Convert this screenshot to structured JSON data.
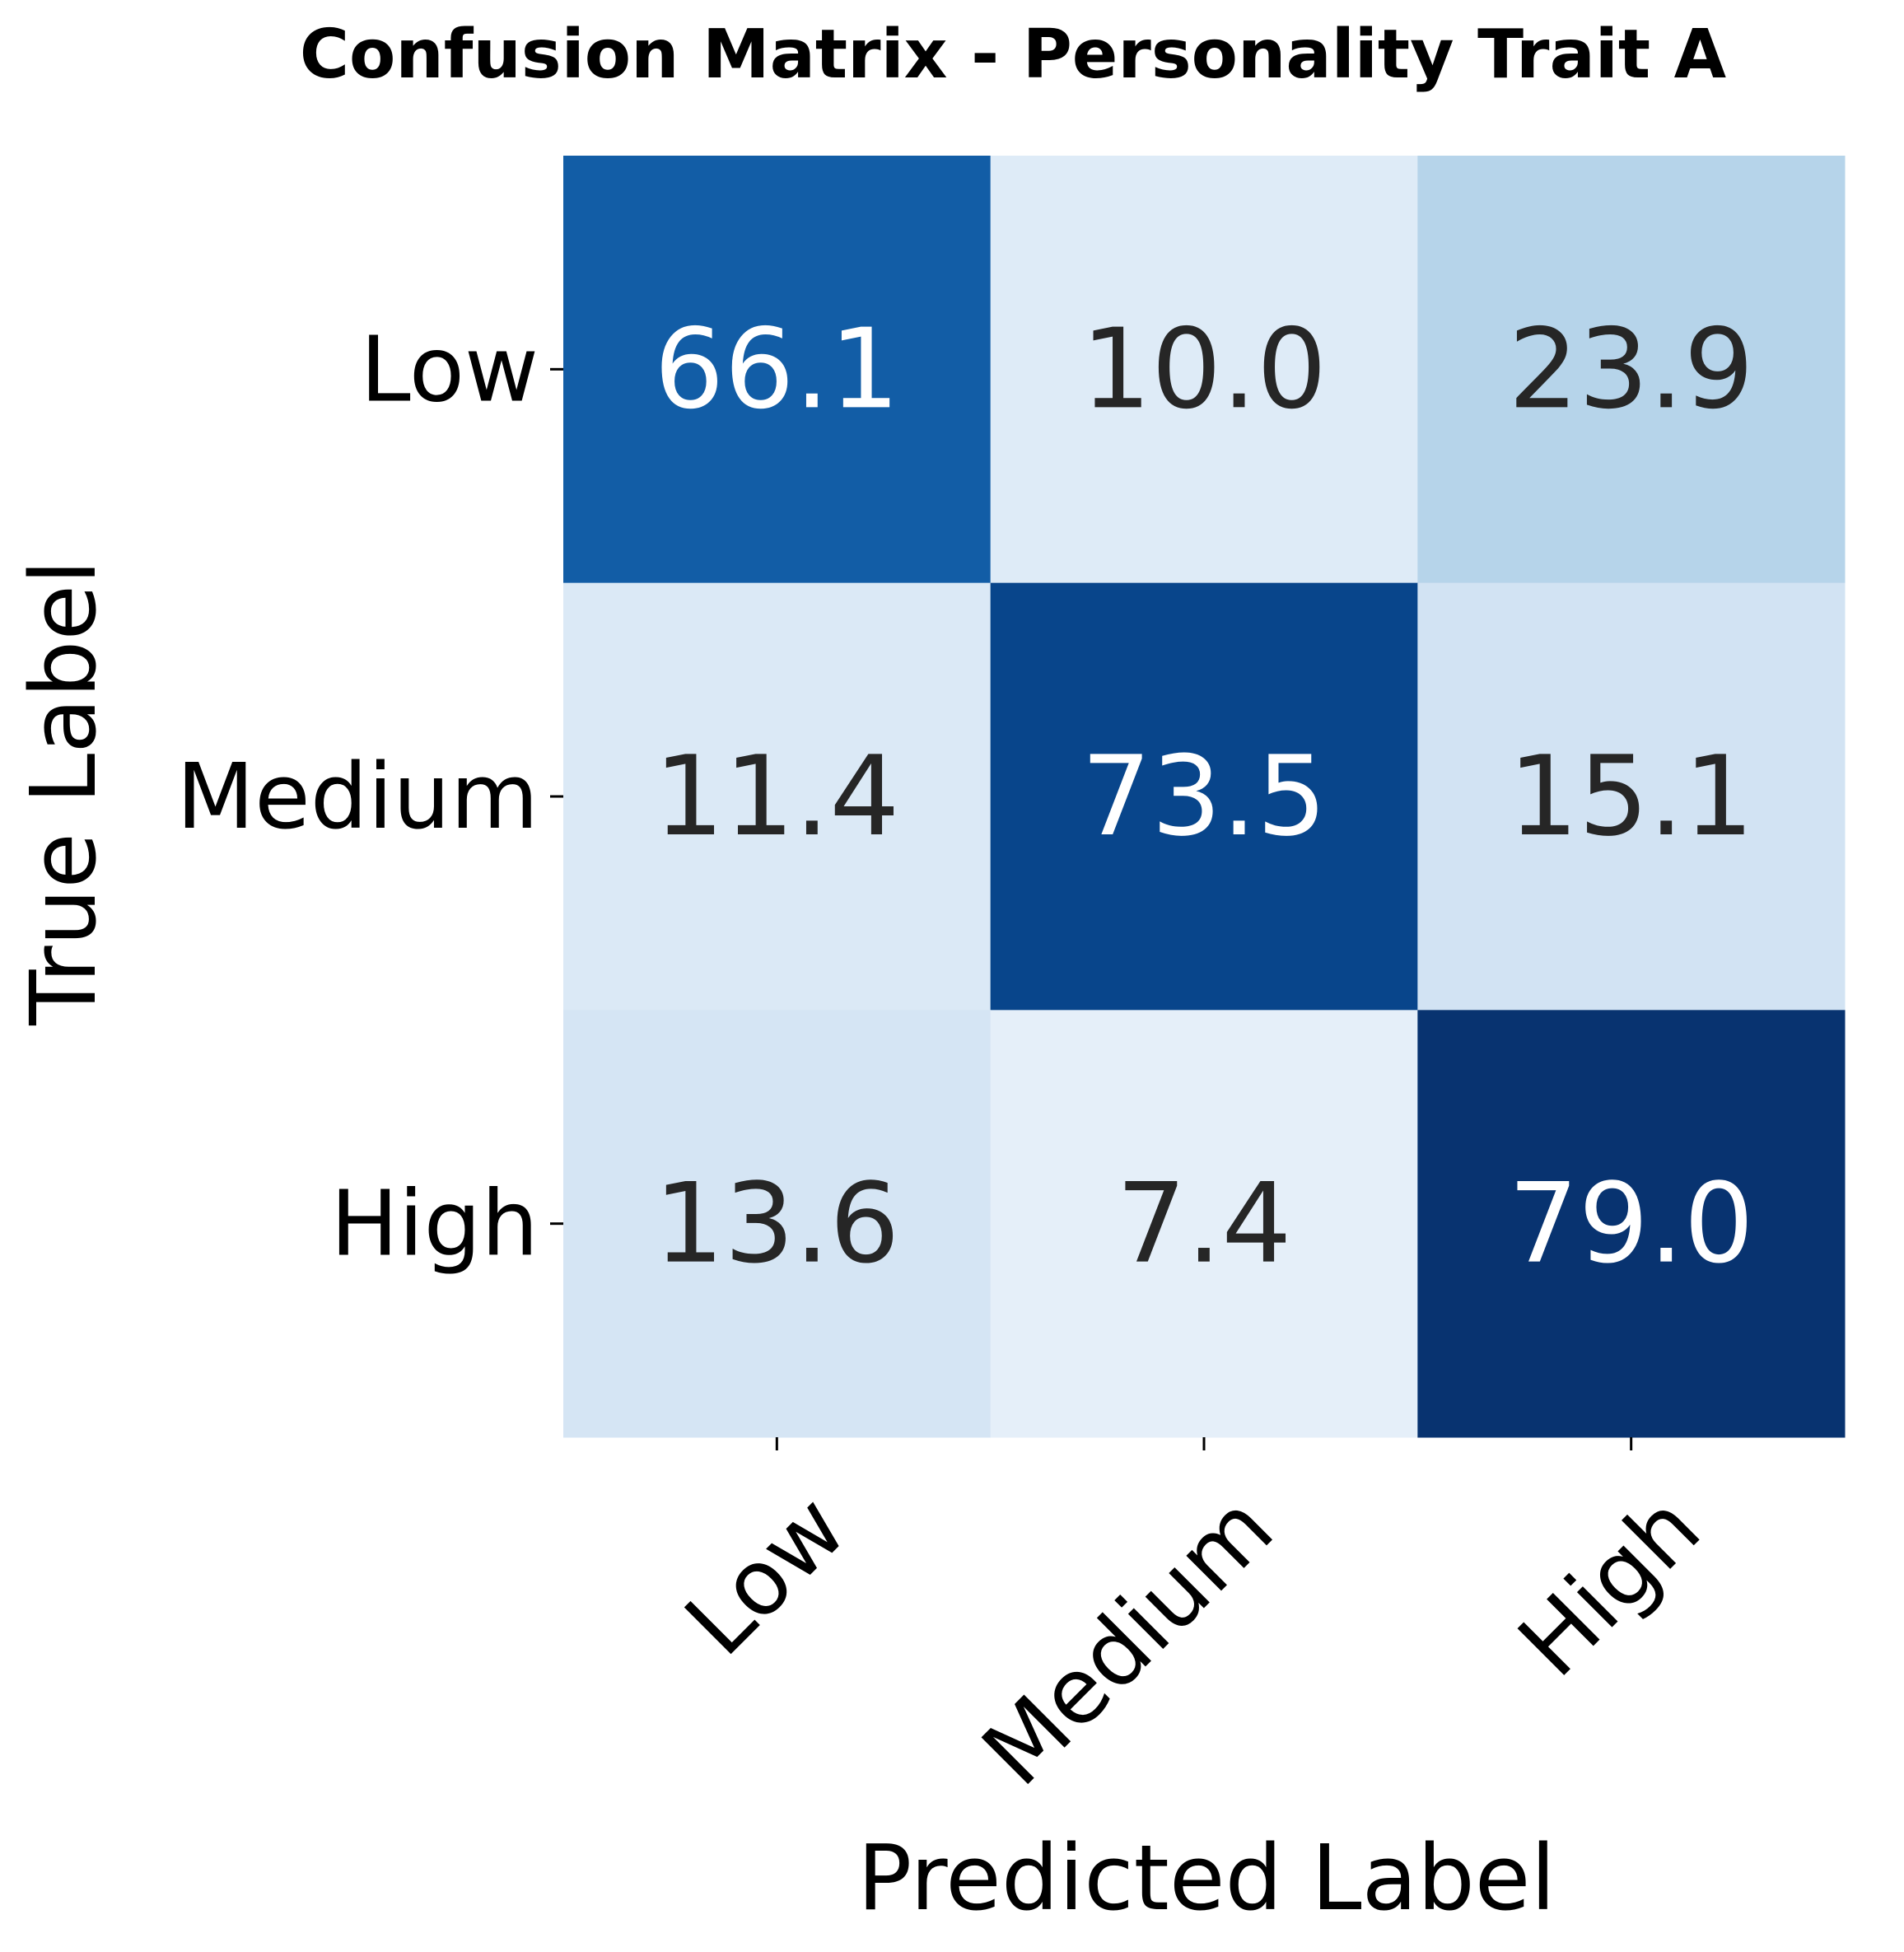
{
  "chart_data": {
    "type": "heatmap",
    "title": "Confusion Matrix - Personality Trait A",
    "xlabel": "Predicted Label",
    "ylabel": "True Label",
    "x_categories": [
      "Low",
      "Medium",
      "High"
    ],
    "y_categories": [
      "Low",
      "Medium",
      "High"
    ],
    "values": [
      [
        66.1,
        10.0,
        23.9
      ],
      [
        11.4,
        73.5,
        15.1
      ],
      [
        13.6,
        7.4,
        79.0
      ]
    ],
    "colormap": "Blues",
    "color_range": [
      0,
      80
    ],
    "colors": {
      "light_text": "#ffffff",
      "dark_text": "#262626"
    }
  }
}
